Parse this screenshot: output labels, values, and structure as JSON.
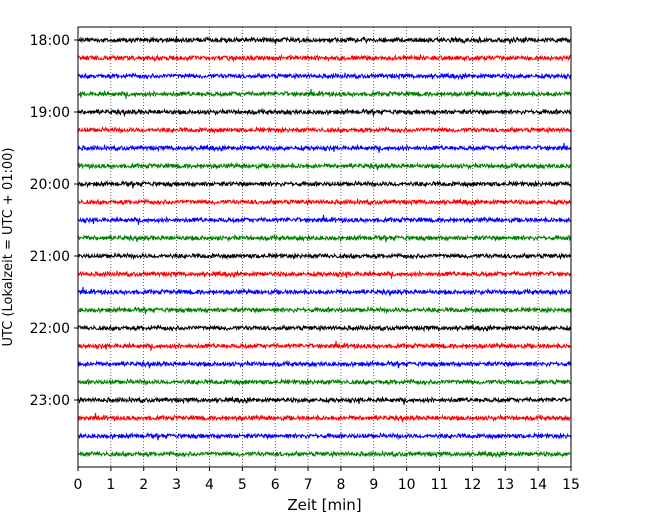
{
  "chart_data": {
    "type": "line",
    "title": "",
    "xlabel": "Zeit  [min]",
    "ylabel": "UTC (Lokalzeit = UTC + 01:00)",
    "xlim": [
      0,
      15
    ],
    "x_ticks": [
      "0",
      "1",
      "2",
      "3",
      "4",
      "5",
      "6",
      "7",
      "8",
      "9",
      "10",
      "11",
      "12",
      "13",
      "14",
      "15"
    ],
    "y_ticks": [
      "18:00",
      "19:00",
      "20:00",
      "21:00",
      "22:00",
      "23:00"
    ],
    "start_time": "18:00",
    "trace_interval_min": 15,
    "trace_count": 24,
    "trace_colors": [
      "#000000",
      "#ff0000",
      "#0000ff",
      "#008000"
    ],
    "grid": "vertical dotted at each minute"
  }
}
